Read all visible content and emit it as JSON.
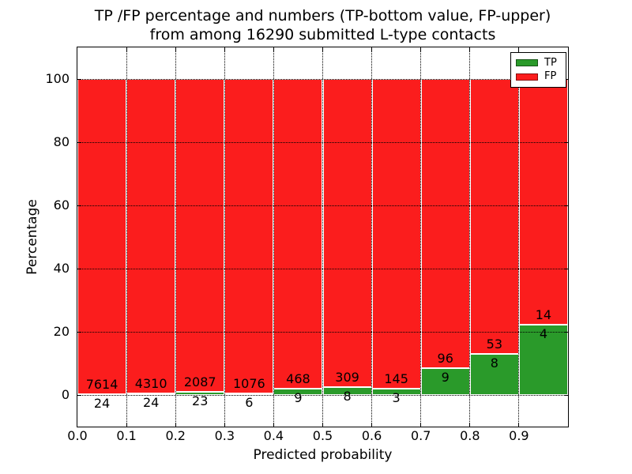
{
  "figure": {
    "title_line1": "TP /FP percentage and numbers (TP-bottom value, FP-upper)",
    "title_line2": "from among 16290 submitted L-type contacts",
    "background": "#ffffff"
  },
  "axes": {
    "xlabel": "Predicted probability",
    "ylabel": "Percentage",
    "xlim": [
      0.0,
      1.0
    ],
    "ylim": [
      -10,
      110
    ],
    "xticks": [
      {
        "value": 0.0,
        "label": "0.0"
      },
      {
        "value": 0.1,
        "label": "0.1"
      },
      {
        "value": 0.2,
        "label": "0.2"
      },
      {
        "value": 0.3,
        "label": "0.3"
      },
      {
        "value": 0.4,
        "label": "0.4"
      },
      {
        "value": 0.5,
        "label": "0.5"
      },
      {
        "value": 0.6,
        "label": "0.6"
      },
      {
        "value": 0.7,
        "label": "0.7"
      },
      {
        "value": 0.8,
        "label": "0.8"
      },
      {
        "value": 0.9,
        "label": "0.9"
      }
    ],
    "yticks": [
      {
        "value": 0,
        "label": "0"
      },
      {
        "value": 20,
        "label": "20"
      },
      {
        "value": 40,
        "label": "40"
      },
      {
        "value": 60,
        "label": "60"
      },
      {
        "value": 80,
        "label": "80"
      },
      {
        "value": 100,
        "label": "100"
      }
    ],
    "grid_style": "dotted",
    "grid_color": "#000000"
  },
  "legend": {
    "position": "upper-right",
    "entries": [
      {
        "label": "TP",
        "color": "#2a9a2a"
      },
      {
        "label": "FP",
        "color": "#fb1d1d"
      }
    ]
  },
  "chart_data": {
    "type": "bar",
    "stacked": true,
    "normalized": "each bar totals 100%",
    "title": "TP /FP percentage and numbers (TP-bottom value, FP-upper) from among 16290 submitted L-type contacts",
    "xlabel": "Predicted probability",
    "ylabel": "Percentage",
    "total_contacts": 16290,
    "bin_width": 0.1,
    "bin_starts": [
      0.0,
      0.1,
      0.2,
      0.3,
      0.4,
      0.5,
      0.6,
      0.7,
      0.8,
      0.9
    ],
    "series": [
      {
        "name": "TP",
        "color": "#2a9a2a",
        "counts": [
          24,
          24,
          23,
          6,
          9,
          8,
          3,
          9,
          8,
          4
        ],
        "percent": [
          0.31,
          0.55,
          1.09,
          0.55,
          1.89,
          2.52,
          2.03,
          8.57,
          13.11,
          22.22
        ]
      },
      {
        "name": "FP",
        "color": "#fb1d1d",
        "counts": [
          7614,
          4310,
          2087,
          1076,
          468,
          309,
          145,
          96,
          53,
          14
        ],
        "percent": [
          99.69,
          99.45,
          98.91,
          99.45,
          98.11,
          97.48,
          97.97,
          91.43,
          86.89,
          77.78
        ]
      }
    ]
  }
}
